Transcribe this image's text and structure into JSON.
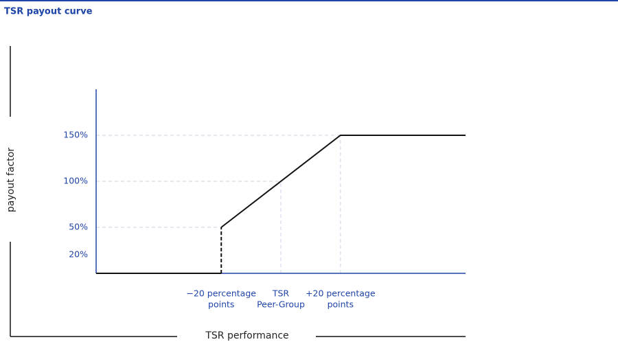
{
  "chart_data": {
    "type": "line",
    "title": "TSR payout curve",
    "x_label": "TSR performance",
    "y_label": "payout factor",
    "xlim": [
      -62,
      62
    ],
    "ylim": [
      0,
      200
    ],
    "xticks": [
      {
        "value": -20,
        "label": [
          "−20 percentage",
          "points"
        ]
      },
      {
        "value": 0,
        "label": [
          "TSR",
          "Peer-Group"
        ]
      },
      {
        "value": 20,
        "label": [
          "+20 percentage",
          "points"
        ]
      }
    ],
    "yticks": [
      {
        "value": 20,
        "label": "20%"
      },
      {
        "value": 50,
        "label": "50%"
      },
      {
        "value": 100,
        "label": "100%"
      },
      {
        "value": 150,
        "label": "150%"
      }
    ],
    "series": [
      {
        "color": "#111111",
        "dash": false,
        "x": [
          -62,
          -20
        ],
        "values": [
          0,
          0
        ]
      },
      {
        "color": "#111111",
        "dash": true,
        "x": [
          -20,
          -20
        ],
        "values": [
          0,
          50
        ]
      },
      {
        "color": "#111111",
        "dash": false,
        "x": [
          -20,
          20,
          62
        ],
        "values": [
          50,
          150,
          150
        ]
      }
    ],
    "accent_color": "#1f44a8",
    "guide_color": "#c9d1e6"
  }
}
